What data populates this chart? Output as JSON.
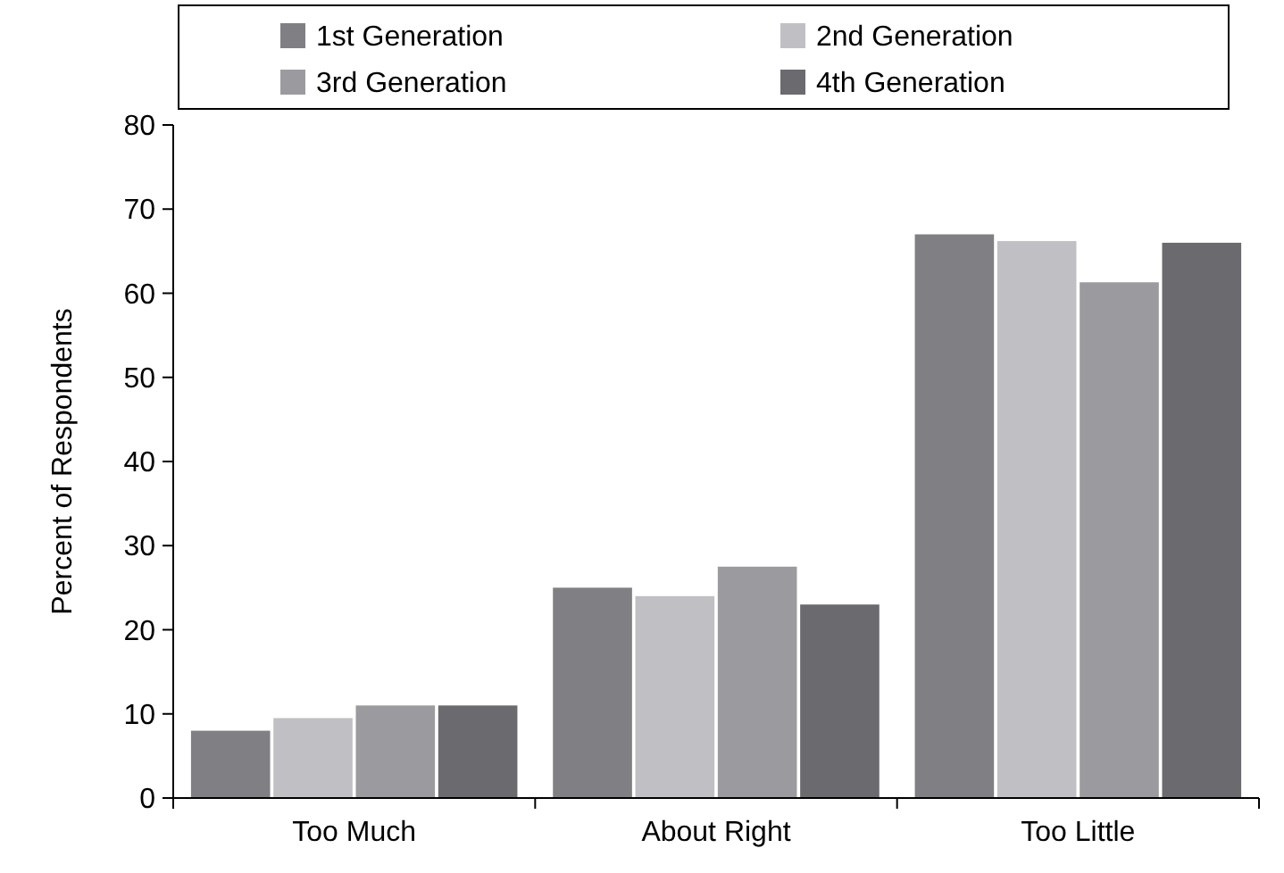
{
  "chart_data": {
    "type": "bar",
    "ylabel": "Percent of Respondents",
    "categories": [
      "Too Much",
      "About Right",
      "Too Little"
    ],
    "series": [
      {
        "name": "1st Generation",
        "color": "#7f7f84",
        "values": [
          8,
          25,
          67
        ]
      },
      {
        "name": "2nd Generation",
        "color": "#c0c0c4",
        "values": [
          9.5,
          24,
          66.2
        ]
      },
      {
        "name": "3rd Generation",
        "color": "#9b9b9f",
        "values": [
          11,
          27.5,
          61.3
        ]
      },
      {
        "name": "4th Generation",
        "color": "#6a6a6f",
        "values": [
          11,
          23,
          66
        ]
      }
    ],
    "ylim": [
      0,
      80
    ],
    "yticks": [
      0,
      10,
      20,
      30,
      40,
      50,
      60,
      70,
      80
    ],
    "grid": false,
    "legend": "top"
  }
}
